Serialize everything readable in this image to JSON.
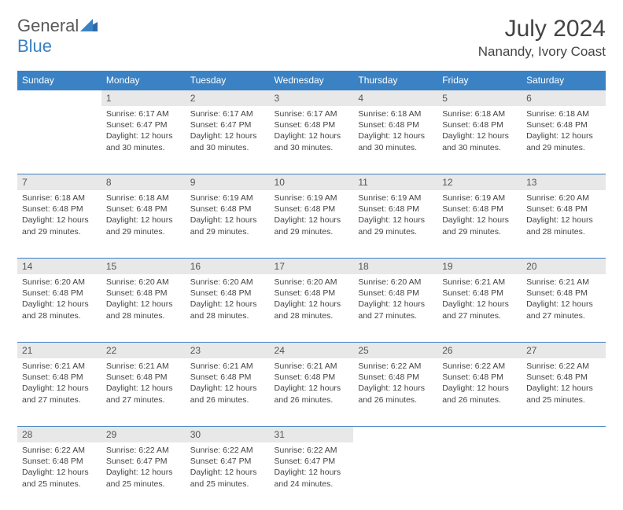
{
  "logo": {
    "word1": "General",
    "word2": "Blue"
  },
  "title": "July 2024",
  "location": "Nanandy, Ivory Coast",
  "header_bg": "#3b82c4",
  "header_fg": "#ffffff",
  "accent_color": "#3b7fc4",
  "daynum_bg": "#e8e8e8",
  "text_color": "#444444",
  "daynames": [
    "Sunday",
    "Monday",
    "Tuesday",
    "Wednesday",
    "Thursday",
    "Friday",
    "Saturday"
  ],
  "weeks": [
    [
      null,
      {
        "n": "1",
        "sr": "Sunrise: 6:17 AM",
        "ss": "Sunset: 6:47 PM",
        "d1": "Daylight: 12 hours",
        "d2": "and 30 minutes."
      },
      {
        "n": "2",
        "sr": "Sunrise: 6:17 AM",
        "ss": "Sunset: 6:47 PM",
        "d1": "Daylight: 12 hours",
        "d2": "and 30 minutes."
      },
      {
        "n": "3",
        "sr": "Sunrise: 6:17 AM",
        "ss": "Sunset: 6:48 PM",
        "d1": "Daylight: 12 hours",
        "d2": "and 30 minutes."
      },
      {
        "n": "4",
        "sr": "Sunrise: 6:18 AM",
        "ss": "Sunset: 6:48 PM",
        "d1": "Daylight: 12 hours",
        "d2": "and 30 minutes."
      },
      {
        "n": "5",
        "sr": "Sunrise: 6:18 AM",
        "ss": "Sunset: 6:48 PM",
        "d1": "Daylight: 12 hours",
        "d2": "and 30 minutes."
      },
      {
        "n": "6",
        "sr": "Sunrise: 6:18 AM",
        "ss": "Sunset: 6:48 PM",
        "d1": "Daylight: 12 hours",
        "d2": "and 29 minutes."
      }
    ],
    [
      {
        "n": "7",
        "sr": "Sunrise: 6:18 AM",
        "ss": "Sunset: 6:48 PM",
        "d1": "Daylight: 12 hours",
        "d2": "and 29 minutes."
      },
      {
        "n": "8",
        "sr": "Sunrise: 6:18 AM",
        "ss": "Sunset: 6:48 PM",
        "d1": "Daylight: 12 hours",
        "d2": "and 29 minutes."
      },
      {
        "n": "9",
        "sr": "Sunrise: 6:19 AM",
        "ss": "Sunset: 6:48 PM",
        "d1": "Daylight: 12 hours",
        "d2": "and 29 minutes."
      },
      {
        "n": "10",
        "sr": "Sunrise: 6:19 AM",
        "ss": "Sunset: 6:48 PM",
        "d1": "Daylight: 12 hours",
        "d2": "and 29 minutes."
      },
      {
        "n": "11",
        "sr": "Sunrise: 6:19 AM",
        "ss": "Sunset: 6:48 PM",
        "d1": "Daylight: 12 hours",
        "d2": "and 29 minutes."
      },
      {
        "n": "12",
        "sr": "Sunrise: 6:19 AM",
        "ss": "Sunset: 6:48 PM",
        "d1": "Daylight: 12 hours",
        "d2": "and 29 minutes."
      },
      {
        "n": "13",
        "sr": "Sunrise: 6:20 AM",
        "ss": "Sunset: 6:48 PM",
        "d1": "Daylight: 12 hours",
        "d2": "and 28 minutes."
      }
    ],
    [
      {
        "n": "14",
        "sr": "Sunrise: 6:20 AM",
        "ss": "Sunset: 6:48 PM",
        "d1": "Daylight: 12 hours",
        "d2": "and 28 minutes."
      },
      {
        "n": "15",
        "sr": "Sunrise: 6:20 AM",
        "ss": "Sunset: 6:48 PM",
        "d1": "Daylight: 12 hours",
        "d2": "and 28 minutes."
      },
      {
        "n": "16",
        "sr": "Sunrise: 6:20 AM",
        "ss": "Sunset: 6:48 PM",
        "d1": "Daylight: 12 hours",
        "d2": "and 28 minutes."
      },
      {
        "n": "17",
        "sr": "Sunrise: 6:20 AM",
        "ss": "Sunset: 6:48 PM",
        "d1": "Daylight: 12 hours",
        "d2": "and 28 minutes."
      },
      {
        "n": "18",
        "sr": "Sunrise: 6:20 AM",
        "ss": "Sunset: 6:48 PM",
        "d1": "Daylight: 12 hours",
        "d2": "and 27 minutes."
      },
      {
        "n": "19",
        "sr": "Sunrise: 6:21 AM",
        "ss": "Sunset: 6:48 PM",
        "d1": "Daylight: 12 hours",
        "d2": "and 27 minutes."
      },
      {
        "n": "20",
        "sr": "Sunrise: 6:21 AM",
        "ss": "Sunset: 6:48 PM",
        "d1": "Daylight: 12 hours",
        "d2": "and 27 minutes."
      }
    ],
    [
      {
        "n": "21",
        "sr": "Sunrise: 6:21 AM",
        "ss": "Sunset: 6:48 PM",
        "d1": "Daylight: 12 hours",
        "d2": "and 27 minutes."
      },
      {
        "n": "22",
        "sr": "Sunrise: 6:21 AM",
        "ss": "Sunset: 6:48 PM",
        "d1": "Daylight: 12 hours",
        "d2": "and 27 minutes."
      },
      {
        "n": "23",
        "sr": "Sunrise: 6:21 AM",
        "ss": "Sunset: 6:48 PM",
        "d1": "Daylight: 12 hours",
        "d2": "and 26 minutes."
      },
      {
        "n": "24",
        "sr": "Sunrise: 6:21 AM",
        "ss": "Sunset: 6:48 PM",
        "d1": "Daylight: 12 hours",
        "d2": "and 26 minutes."
      },
      {
        "n": "25",
        "sr": "Sunrise: 6:22 AM",
        "ss": "Sunset: 6:48 PM",
        "d1": "Daylight: 12 hours",
        "d2": "and 26 minutes."
      },
      {
        "n": "26",
        "sr": "Sunrise: 6:22 AM",
        "ss": "Sunset: 6:48 PM",
        "d1": "Daylight: 12 hours",
        "d2": "and 26 minutes."
      },
      {
        "n": "27",
        "sr": "Sunrise: 6:22 AM",
        "ss": "Sunset: 6:48 PM",
        "d1": "Daylight: 12 hours",
        "d2": "and 25 minutes."
      }
    ],
    [
      {
        "n": "28",
        "sr": "Sunrise: 6:22 AM",
        "ss": "Sunset: 6:48 PM",
        "d1": "Daylight: 12 hours",
        "d2": "and 25 minutes."
      },
      {
        "n": "29",
        "sr": "Sunrise: 6:22 AM",
        "ss": "Sunset: 6:47 PM",
        "d1": "Daylight: 12 hours",
        "d2": "and 25 minutes."
      },
      {
        "n": "30",
        "sr": "Sunrise: 6:22 AM",
        "ss": "Sunset: 6:47 PM",
        "d1": "Daylight: 12 hours",
        "d2": "and 25 minutes."
      },
      {
        "n": "31",
        "sr": "Sunrise: 6:22 AM",
        "ss": "Sunset: 6:47 PM",
        "d1": "Daylight: 12 hours",
        "d2": "and 24 minutes."
      },
      null,
      null,
      null
    ]
  ]
}
